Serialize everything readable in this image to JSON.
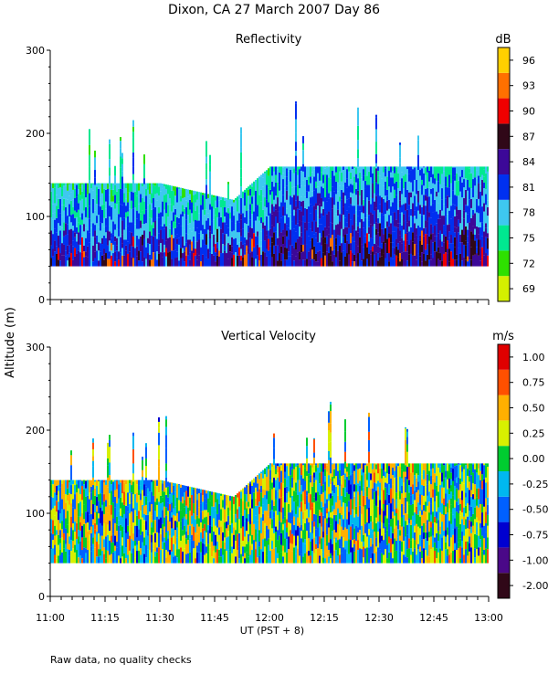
{
  "title": "Dixon, CA 27 March 2007  Day  86",
  "footer_note": "Raw data, no quality checks",
  "ylabel": "Altitude (m)",
  "xlabel": "UT  (PST + 8)",
  "colors": {
    "reflectivity_scale": [
      "#d4f000",
      "#2ee000",
      "#00e890",
      "#3ec8f0",
      "#0030f0",
      "#3c0898",
      "#300818",
      "#f00000",
      "#ff7000",
      "#ffd000"
    ],
    "velocity_scale": [
      "#300818",
      "#4a0888",
      "#0000d0",
      "#0060ff",
      "#00b8f0",
      "#00cc30",
      "#d8f000",
      "#ffb000",
      "#ff5000",
      "#e00000"
    ]
  },
  "chart_data": [
    {
      "type": "heatmap",
      "title": "Reflectivity",
      "units": "dB",
      "x_ticks": [
        "11:00",
        "11:15",
        "11:30",
        "11:45",
        "12:00",
        "12:15",
        "12:30",
        "12:45",
        "13:00"
      ],
      "xlim": [
        "11:00",
        "13:00"
      ],
      "ylim": [
        0,
        300
      ],
      "y_ticks": [
        "0",
        "100",
        "200",
        "300"
      ],
      "colorbar": [
        "69",
        "72",
        "75",
        "78",
        "81",
        "84",
        "87",
        "90",
        "93",
        "96"
      ],
      "data_floor_m": 40,
      "echo_top_m": {
        "11:00": 140,
        "11:30": 140,
        "11:50": 120,
        "12:00": 160,
        "12:30": 160,
        "13:00": 160
      }
    },
    {
      "type": "heatmap",
      "title": "Vertical Velocity",
      "units": "m/s",
      "x_ticks": [
        "11:00",
        "11:15",
        "11:30",
        "11:45",
        "12:00",
        "12:15",
        "12:30",
        "12:45",
        "13:00"
      ],
      "xlim": [
        "11:00",
        "13:00"
      ],
      "ylim": [
        0,
        300
      ],
      "y_ticks": [
        "0",
        "100",
        "200",
        "300"
      ],
      "colorbar": [
        "-2.00",
        "-1.00",
        "-0.75",
        "-0.50",
        "-0.25",
        "0.00",
        "0.25",
        "0.50",
        "0.75",
        "1.00"
      ],
      "data_floor_m": 40,
      "echo_top_m": {
        "11:00": 140,
        "11:30": 140,
        "11:50": 120,
        "12:00": 160,
        "12:30": 160,
        "13:00": 160
      }
    }
  ]
}
